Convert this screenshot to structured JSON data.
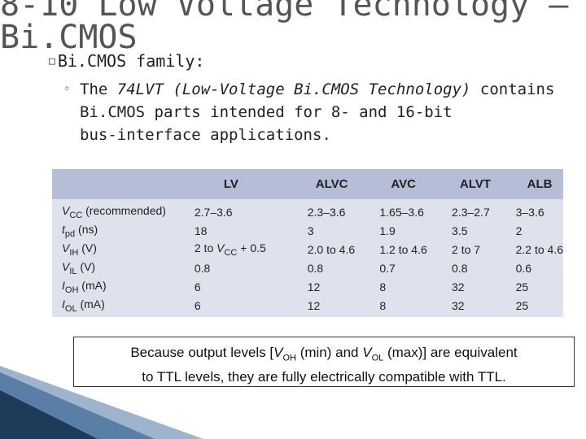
{
  "title": {
    "line1": "8-10 Low Voltage Technology –",
    "line2": "Bi.CMOS"
  },
  "bullet": {
    "icon": "bullet-square-icon",
    "text": "Bi.CMOS family:"
  },
  "sub_bullet": {
    "prefix": "The ",
    "italic": "74LVT (Low-Voltage Bi.CMOS Technology)",
    "line1_suffix": " contains",
    "line2": "Bi.CMOS parts intended for 8- and 16-bit",
    "line3": "bus-interface applications."
  },
  "table": {
    "headers": [
      "",
      "LV",
      "ALVC",
      "AVC",
      "ALVT",
      "ALB"
    ],
    "rows": [
      {
        "sym": "V",
        "sub": "CC",
        "suffix": " (recommended)",
        "values": [
          "2.7–3.6",
          "2.3–3.6",
          "1.65–3.6",
          "2.3–2.7",
          "3–3.6"
        ]
      },
      {
        "sym": "t",
        "sub": "pd",
        "suffix": " (ns)",
        "values": [
          "18",
          "3",
          "1.9",
          "3.5",
          "2"
        ]
      },
      {
        "sym": "V",
        "sub": "IH",
        "suffix": " (V)",
        "values": [
          "2 to VCC + 0.5",
          "2.0 to 4.6",
          "1.2 to 4.6",
          "2 to 7",
          "2.2 to 4.6"
        ]
      },
      {
        "sym": "V",
        "sub": "IL",
        "suffix": " (V)",
        "values": [
          "0.8",
          "0.8",
          "0.7",
          "0.8",
          "0.6"
        ]
      },
      {
        "sym": "I",
        "sub": "OH",
        "suffix": " (mA)",
        "values": [
          "6",
          "12",
          "8",
          "32",
          "25"
        ]
      },
      {
        "sym": "I",
        "sub": "OL",
        "suffix": " (mA)",
        "values": [
          "6",
          "12",
          "8",
          "32",
          "25"
        ]
      }
    ],
    "vih_lv": {
      "pre": "2 to ",
      "sym": "V",
      "sub": "CC",
      "post": " + 0.5"
    }
  },
  "note": {
    "p1": "Because output levels [",
    "v1": "V",
    "s1": "OH",
    "p2": " (min) and ",
    "v2": "V",
    "s2": "OL",
    "p3": " (max)] are equivalent",
    "line2": "to TTL levels, they are fully electrically compatible with TTL."
  },
  "colors": {
    "title": "#555555",
    "table_header": "#b6bed7",
    "table_body": "#dfe2ed",
    "deco_dark": "#1f3b5a",
    "deco_light": "#9db4cc"
  }
}
